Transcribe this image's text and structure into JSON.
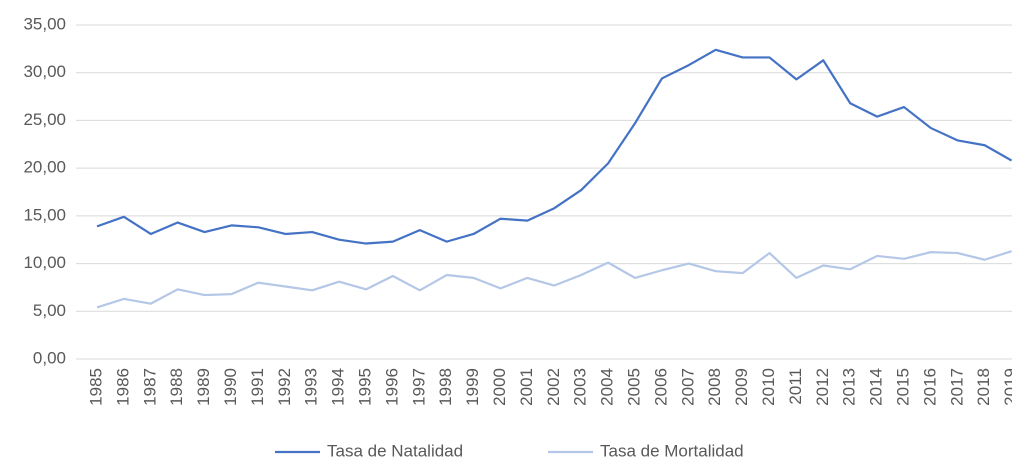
{
  "chart_data": {
    "type": "line",
    "categories": [
      "1985",
      "1986",
      "1987",
      "1988",
      "1989",
      "1990",
      "1991",
      "1992",
      "1993",
      "1994",
      "1995",
      "1996",
      "1997",
      "1998",
      "1999",
      "2000",
      "2001",
      "2002",
      "2003",
      "2004",
      "2005",
      "2006",
      "2007",
      "2008",
      "2009",
      "2010",
      "2011",
      "2012",
      "2013",
      "2014",
      "2015",
      "2016",
      "2017",
      "2018",
      "2019"
    ],
    "series": [
      {
        "name": "Tasa de Natalidad",
        "color": "#4472c4",
        "values": [
          13.9,
          14.9,
          13.1,
          14.3,
          13.3,
          14.0,
          13.8,
          13.1,
          13.3,
          12.5,
          12.1,
          12.3,
          13.5,
          12.3,
          13.1,
          14.7,
          14.5,
          15.8,
          17.7,
          20.5,
          24.7,
          29.4,
          30.8,
          32.4,
          31.6,
          31.6,
          29.3,
          31.3,
          26.8,
          25.4,
          26.4,
          24.2,
          22.9,
          22.4,
          20.8
        ]
      },
      {
        "name": "Tasa de Mortalidad",
        "color": "#b4c7e7",
        "values": [
          5.4,
          6.3,
          5.8,
          7.3,
          6.7,
          6.8,
          8.0,
          7.6,
          7.2,
          8.1,
          7.3,
          8.7,
          7.2,
          8.8,
          8.5,
          7.4,
          8.5,
          7.7,
          8.8,
          10.1,
          8.5,
          9.3,
          10.0,
          9.2,
          9.0,
          11.1,
          8.5,
          9.8,
          9.4,
          10.8,
          10.5,
          11.2,
          11.1,
          10.4,
          11.3
        ]
      }
    ],
    "ylim": [
      0,
      35
    ],
    "yticks": [
      {
        "value": 0,
        "label": "0,00"
      },
      {
        "value": 5,
        "label": "5,00"
      },
      {
        "value": 10,
        "label": "10,00"
      },
      {
        "value": 15,
        "label": "15,00"
      },
      {
        "value": 20,
        "label": "20,00"
      },
      {
        "value": 25,
        "label": "25,00"
      },
      {
        "value": 30,
        "label": "30,00"
      },
      {
        "value": 35,
        "label": "35,00"
      }
    ],
    "grid": true,
    "legend": "bottom"
  }
}
